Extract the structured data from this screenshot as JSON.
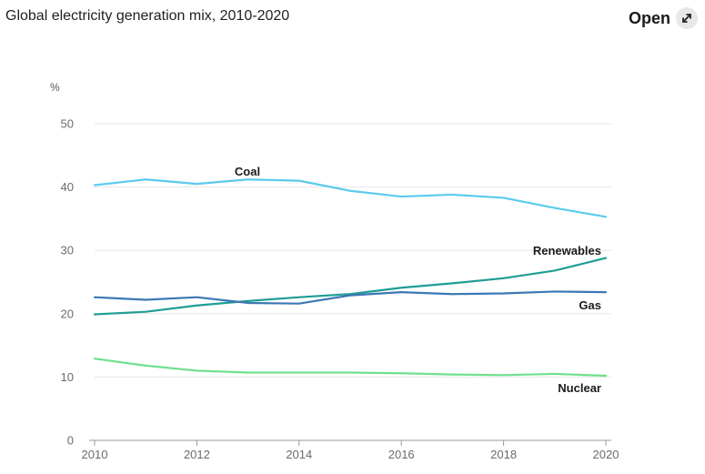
{
  "header": {
    "title": "Global electricity generation mix, 2010-2020",
    "open_label": "Open",
    "open_icon": "expand-arrows-icon"
  },
  "chart_data": {
    "type": "line",
    "title": "Global electricity generation mix, 2010-2020",
    "ylabel": "%",
    "xlabel": "",
    "x": [
      2010,
      2011,
      2012,
      2013,
      2014,
      2015,
      2016,
      2017,
      2018,
      2019,
      2020
    ],
    "xticks": [
      "2010",
      "2012",
      "2014",
      "2016",
      "2018",
      "2020"
    ],
    "yticks": [
      "0",
      "10",
      "20",
      "30",
      "40",
      "50"
    ],
    "ylim": [
      0,
      50
    ],
    "xlim": [
      2010,
      2020
    ],
    "grid": true,
    "series": [
      {
        "name": "Coal",
        "color": "#5bcbec",
        "values": [
          40.3,
          41.2,
          40.5,
          41.2,
          41.0,
          39.4,
          38.5,
          38.8,
          38.3,
          36.7,
          35.3
        ]
      },
      {
        "name": "Renewables",
        "color": "#1f9d96",
        "values": [
          19.9,
          20.3,
          21.3,
          22.0,
          22.6,
          23.1,
          24.1,
          24.8,
          25.6,
          26.8,
          28.8
        ]
      },
      {
        "name": "Gas",
        "color": "#3c78b4",
        "values": [
          22.6,
          22.2,
          22.6,
          21.7,
          21.6,
          22.9,
          23.4,
          23.1,
          23.2,
          23.5,
          23.4
        ]
      },
      {
        "name": "Nuclear",
        "color": "#6fe08e",
        "values": [
          12.9,
          11.8,
          11.0,
          10.7,
          10.7,
          10.7,
          10.6,
          10.4,
          10.3,
          10.5,
          10.2
        ]
      }
    ]
  }
}
